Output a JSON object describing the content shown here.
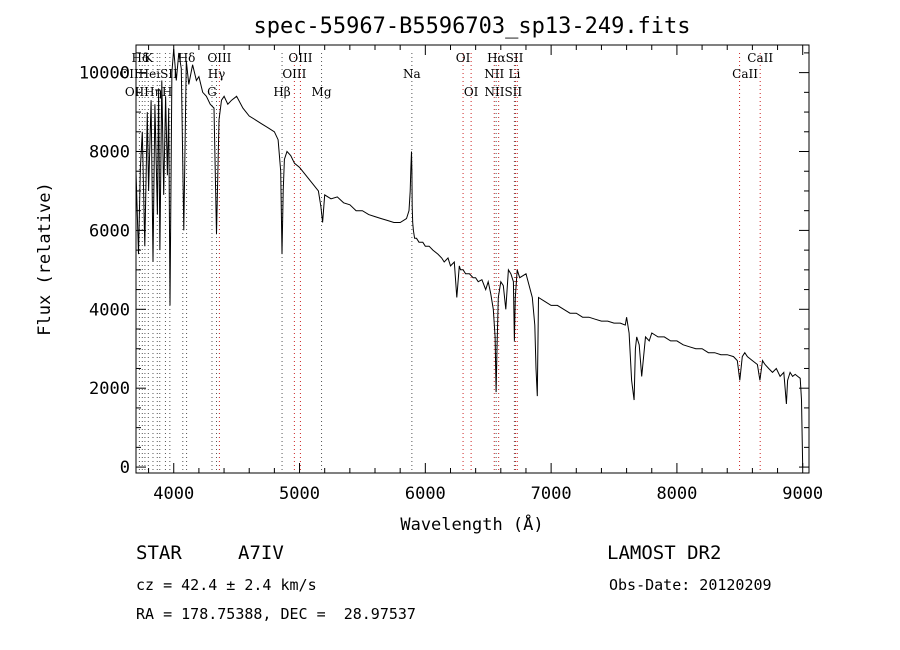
{
  "chart_data": {
    "type": "line",
    "title": "spec-55967-B5596703_sp13-249.fits",
    "xlabel": "Wavelength (Å)",
    "ylabel": "Flux (relative)",
    "xlim": [
      3700,
      9050
    ],
    "ylim": [
      -150,
      10700
    ],
    "x_ticks": [
      4000,
      5000,
      6000,
      7000,
      8000,
      9000
    ],
    "y_ticks": [
      0,
      2000,
      4000,
      6000,
      8000,
      10000
    ],
    "grid": false,
    "series": [
      {
        "x": [
          3700,
          3720,
          3735,
          3750,
          3770,
          3790,
          3800,
          3820,
          3835,
          3850,
          3870,
          3880,
          3890,
          3905,
          3920,
          3935,
          3950,
          3960,
          3970,
          3985,
          4000,
          4020,
          4040,
          4060,
          4080,
          4100,
          4120,
          4150,
          4180,
          4200,
          4230,
          4260,
          4290,
          4320,
          4340,
          4360,
          4380,
          4400,
          4430,
          4460,
          4500,
          4550,
          4600,
          4650,
          4700,
          4750,
          4800,
          4830,
          4850,
          4861,
          4870,
          4880,
          4900,
          4930,
          4960,
          5000,
          5050,
          5100,
          5150,
          5170,
          5183,
          5200,
          5250,
          5300,
          5350,
          5400,
          5450,
          5500,
          5550,
          5600,
          5650,
          5700,
          5750,
          5800,
          5850,
          5870,
          5880,
          5885,
          5890,
          5893,
          5896,
          5900,
          5905,
          5915,
          5930,
          5950,
          5980,
          6000,
          6030,
          6060,
          6100,
          6130,
          6150,
          6180,
          6200,
          6230,
          6250,
          6270,
          6280,
          6300,
          6320,
          6350,
          6380,
          6400,
          6420,
          6450,
          6480,
          6500,
          6520,
          6540,
          6555,
          6563,
          6570,
          6580,
          6600,
          6620,
          6640,
          6660,
          6680,
          6700,
          6708,
          6715,
          6730,
          6750,
          6800,
          6850,
          6870,
          6880,
          6890,
          6900,
          6950,
          7000,
          7050,
          7100,
          7150,
          7200,
          7250,
          7300,
          7350,
          7400,
          7450,
          7500,
          7550,
          7590,
          7600,
          7620,
          7640,
          7660,
          7670,
          7680,
          7700,
          7720,
          7750,
          7780,
          7800,
          7850,
          7900,
          7950,
          8000,
          8050,
          8100,
          8150,
          8200,
          8250,
          8300,
          8350,
          8400,
          8450,
          8480,
          8500,
          8520,
          8540,
          8560,
          8600,
          8640,
          8660,
          8680,
          8700,
          8730,
          8760,
          8790,
          8820,
          8850,
          8870,
          8880,
          8900,
          8920,
          8940,
          8960,
          8980,
          8990,
          9000
        ],
        "y": [
          7500,
          5400,
          7600,
          8500,
          5600,
          9000,
          7000,
          9300,
          5200,
          9200,
          6400,
          9600,
          5500,
          9800,
          6900,
          9400,
          7400,
          9100,
          4100,
          10000,
          10600,
          9800,
          10500,
          10100,
          6000,
          10300,
          9700,
          10200,
          9800,
          9900,
          9500,
          9400,
          9200,
          9100,
          5900,
          8800,
          9300,
          9400,
          9200,
          9300,
          9400,
          9100,
          8900,
          8800,
          8700,
          8600,
          8500,
          8300,
          7500,
          5400,
          7000,
          7800,
          8000,
          7900,
          7700,
          7600,
          7400,
          7200,
          7000,
          6600,
          6200,
          6900,
          6800,
          6850,
          6700,
          6650,
          6500,
          6500,
          6400,
          6350,
          6300,
          6250,
          6200,
          6200,
          6300,
          6500,
          7000,
          7600,
          8000,
          7500,
          6600,
          6200,
          6000,
          5800,
          5800,
          5700,
          5700,
          5600,
          5600,
          5500,
          5400,
          5300,
          5200,
          5300,
          5100,
          5200,
          4300,
          5100,
          5000,
          5000,
          4900,
          4900,
          4800,
          4800,
          4700,
          4750,
          4500,
          4700,
          4400,
          4000,
          3300,
          1900,
          3000,
          4300,
          4700,
          4600,
          4000,
          5000,
          4900,
          4700,
          3200,
          4300,
          5000,
          4800,
          4900,
          4300,
          3600,
          2500,
          1800,
          4300,
          4200,
          4100,
          4100,
          4000,
          3900,
          3900,
          3800,
          3800,
          3750,
          3700,
          3700,
          3650,
          3650,
          3600,
          3800,
          3400,
          2200,
          1700,
          3000,
          3300,
          3100,
          2300,
          3300,
          3200,
          3400,
          3300,
          3300,
          3200,
          3200,
          3100,
          3050,
          3000,
          3000,
          2900,
          2900,
          2850,
          2850,
          2800,
          2700,
          2200,
          2800,
          2900,
          2800,
          2700,
          2600,
          2200,
          2700,
          2600,
          2500,
          2400,
          2500,
          2300,
          2400,
          1600,
          2200,
          2400,
          2300,
          2350,
          2300,
          2250,
          1700,
          0
        ]
      }
    ],
    "line_labels": [
      {
        "text": "Hδ",
        "row": 1,
        "lam": 3735
      },
      {
        "text": "K",
        "row": 1,
        "lam": 3800
      },
      {
        "text": "Hδ",
        "row": 1,
        "lam": 4102
      },
      {
        "text": "OIII",
        "row": 1,
        "lam": 4363
      },
      {
        "text": "OIII",
        "row": 1,
        "lam": 5007
      },
      {
        "text": "OI",
        "row": 1,
        "lam": 6300
      },
      {
        "text": "HαSII",
        "row": 1,
        "lam": 6635
      },
      {
        "text": "CaII",
        "row": 1,
        "lam": 8662
      },
      {
        "text": "OIIHeiSII",
        "row": 2,
        "lam": 3800
      },
      {
        "text": "Hγ",
        "row": 2,
        "lam": 4340
      },
      {
        "text": "OIII",
        "row": 2,
        "lam": 4959
      },
      {
        "text": "Na",
        "row": 2,
        "lam": 5893
      },
      {
        "text": "NII",
        "row": 2,
        "lam": 6548
      },
      {
        "text": "Li",
        "row": 2,
        "lam": 6708
      },
      {
        "text": "CaII",
        "row": 2,
        "lam": 8542
      },
      {
        "text": "OIIHηH",
        "row": 3,
        "lam": 3800
      },
      {
        "text": "G",
        "row": 3,
        "lam": 4304
      },
      {
        "text": "Hβ",
        "row": 3,
        "lam": 4861
      },
      {
        "text": "Mg",
        "row": 3,
        "lam": 5175
      },
      {
        "text": "OI",
        "row": 3,
        "lam": 6364
      },
      {
        "text": "NIISII",
        "row": 3,
        "lam": 6620
      }
    ],
    "marker_lines": {
      "black": [
        3727,
        3750,
        3771,
        3798,
        3835,
        3869,
        3889,
        3934,
        3969,
        4072,
        4102,
        4304,
        4340,
        4861,
        5175,
        5893,
        6563,
        6708
      ],
      "red": [
        4363,
        4959,
        5007,
        6300,
        6364,
        6548,
        6583,
        6717,
        6731,
        8498,
        8662
      ]
    }
  },
  "info": {
    "object_type": "STAR",
    "subclass": "A7IV",
    "survey": "LAMOST DR2",
    "cz": "cz = 42.4 ± 2.4 km/s",
    "obs_date": "Obs-Date: 20120209",
    "coords": "RA = 178.75388, DEC =  28.97537"
  }
}
